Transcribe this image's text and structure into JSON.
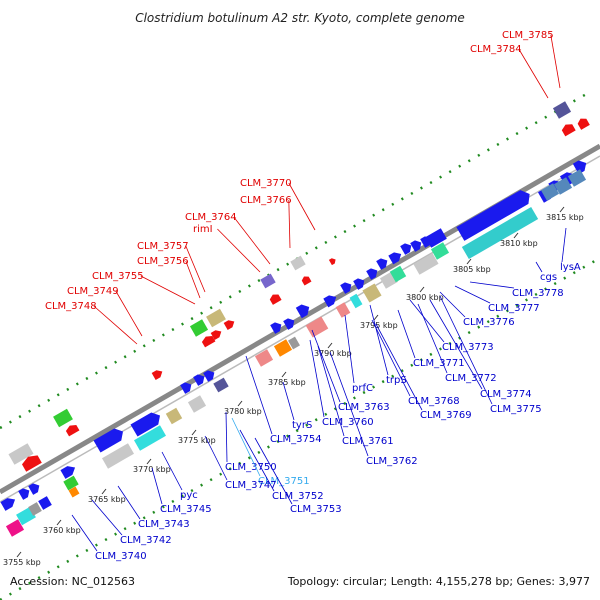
{
  "title": "Clostridium botulinum A2 str. Kyoto, complete genome",
  "accession": "Accession: NC_012563",
  "topology": "Topology: circular; Length: 4,155,278 bp; Genes: 3,977",
  "colors": {
    "top_labels": "#e00000",
    "bottom_labels": "#0000cc",
    "highlight_label": "#33aaee",
    "backbone": "#888888",
    "dots": "#228b22"
  },
  "ticks": [
    "3755 kbp",
    "3760 kbp",
    "3765 kbp",
    "3770 kbp",
    "3775 kbp",
    "3780 kbp",
    "3785 kbp",
    "3790 kbp",
    "3795 kbp",
    "3800 kbp",
    "3805 kbp",
    "3810 kbp",
    "3815 kbp"
  ],
  "top_labels": [
    "CLM_3785",
    "CLM_3784",
    "CLM_3770",
    "CLM_3766",
    "CLM_3764",
    "rimI",
    "CLM_3757",
    "CLM_3756",
    "CLM_3755",
    "CLM_3749",
    "CLM_3748"
  ],
  "bottom_labels": [
    "cgs",
    "lysA",
    "CLM_3778",
    "CLM_3777",
    "CLM_3776",
    "CLM_3773",
    "CLM_3771",
    "CLM_3772",
    "CLM_3774",
    "CLM_3775",
    "prfC",
    "trpS",
    "CLM_3768",
    "CLM_3769",
    "CLM_3763",
    "CLM_3760",
    "CLM_3761",
    "CLM_3762",
    "tyrS",
    "CLM_3754",
    "CLM_3750",
    "CLM_3751",
    "CLM_3747",
    "CLM_3752",
    "CLM_3753",
    "pyc",
    "CLM_3745",
    "CLM_3743",
    "CLM_3742",
    "CLM_3740"
  ]
}
